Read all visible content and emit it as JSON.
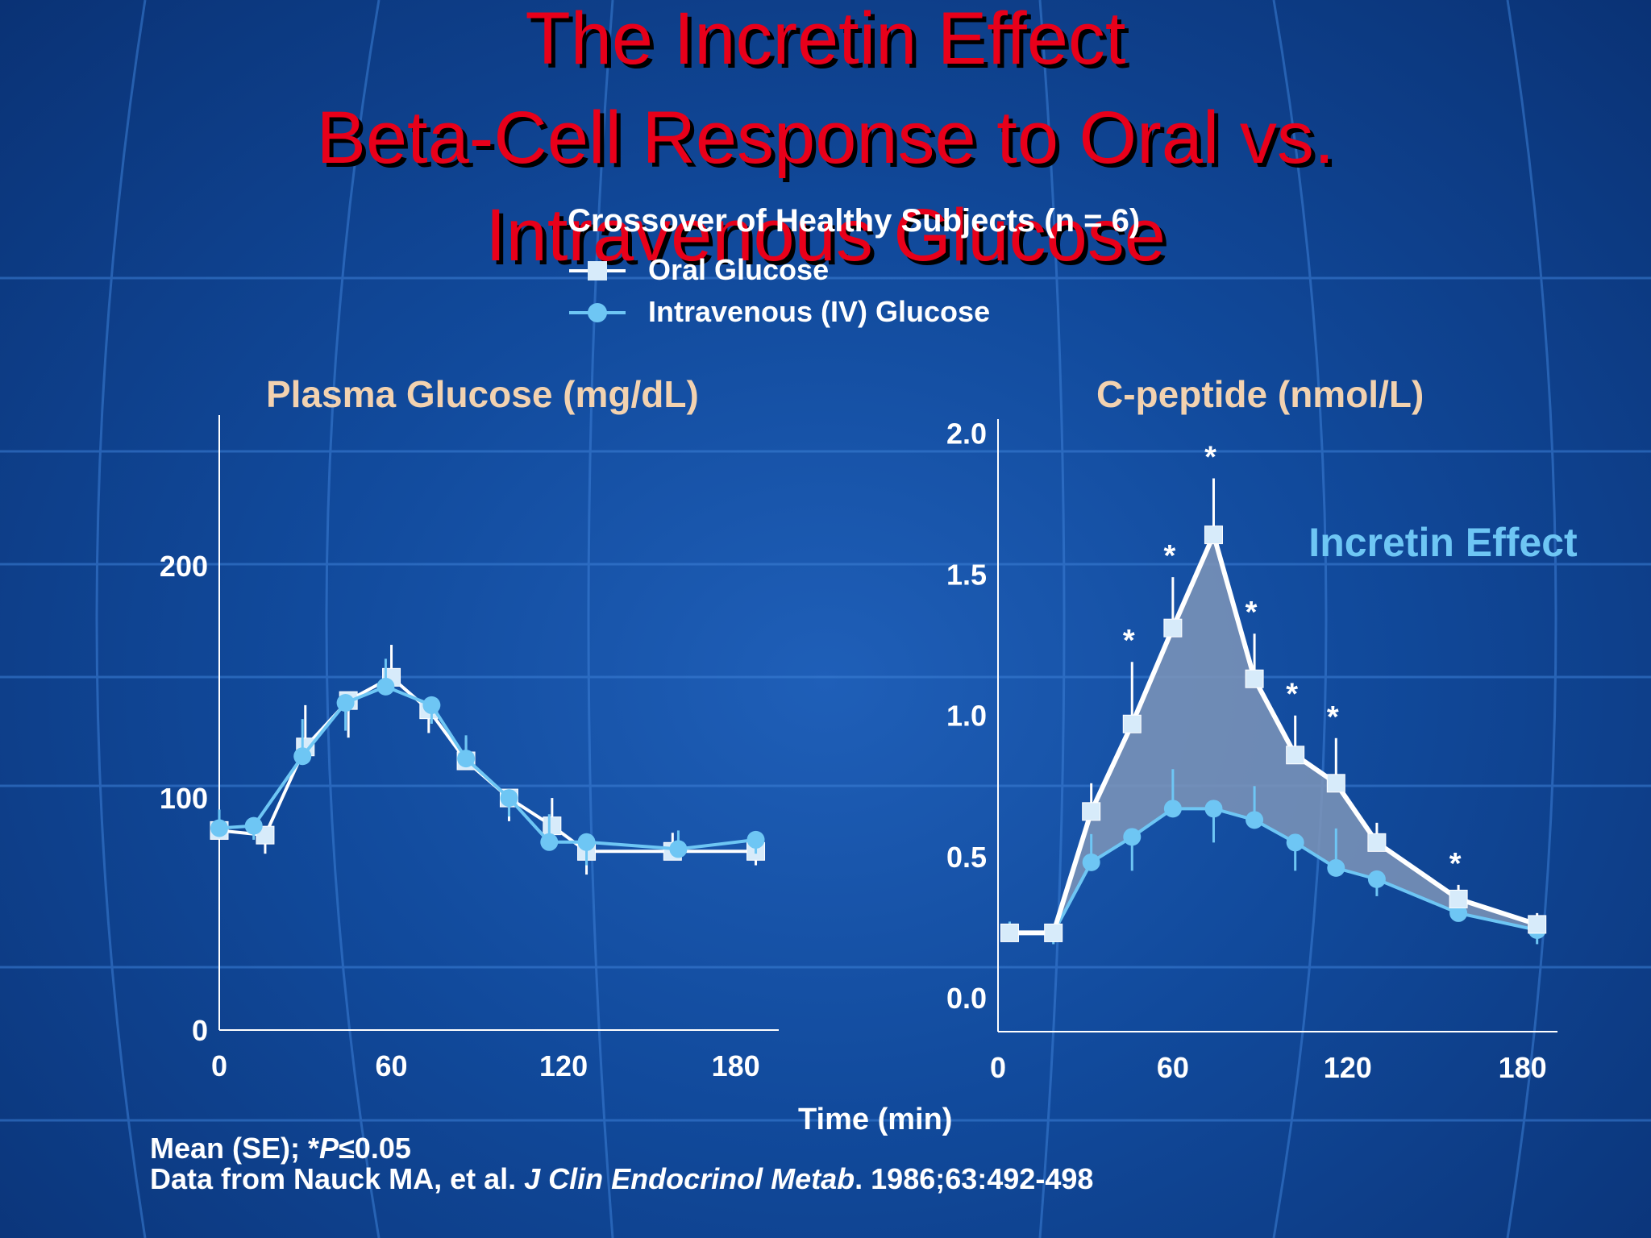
{
  "title": {
    "line1": "The Incretin Effect",
    "line2": "Beta-Cell Response to Oral vs.",
    "line3": "Intravenous Glucose"
  },
  "subtitle": "Crossover of Healthy Subjects (n = 6)",
  "legend": {
    "oral": "Oral Glucose",
    "iv": "Intravenous (IV) Glucose"
  },
  "colors": {
    "title": "#e8001a",
    "oral": "#ffffff",
    "oral_marker": "#d7ebfa",
    "iv": "#6ec6f4",
    "panel_title": "#f2d2b0",
    "incretin_label": "#6ec6f4",
    "area_fill": "#7e95b8"
  },
  "footnote": {
    "line1_prefix": "Mean (SE); *",
    "line1_italic": "P",
    "line1_suffix": "≤0.05",
    "line2_prefix": "Data from Nauck MA, et al. ",
    "line2_italic": "J Clin Endocrinol Metab",
    "line2_suffix": ". 1986;63:492-498"
  },
  "shared_xlabel": "Time (min)",
  "chart_data": [
    {
      "type": "line",
      "title": "Plasma Glucose (mg/dL)",
      "xlabel": "Time (min)",
      "ylabel": "",
      "xlim": [
        0,
        195
      ],
      "ylim": [
        0,
        265
      ],
      "x_ticks": [
        0,
        60,
        120,
        180
      ],
      "y_ticks": [
        0,
        100,
        200
      ],
      "grid": false,
      "series": [
        {
          "name": "Oral Glucose",
          "x": [
            0,
            16,
            30,
            45,
            60,
            73,
            86,
            101,
            116,
            128,
            158,
            187
          ],
          "y": [
            86,
            84,
            122,
            142,
            152,
            138,
            116,
            100,
            88,
            77,
            77,
            77
          ],
          "err": [
            8,
            8,
            18,
            16,
            14,
            10,
            10,
            10,
            12,
            10,
            8,
            6
          ]
        },
        {
          "name": "Intravenous (IV) Glucose",
          "x": [
            0,
            12,
            29,
            44,
            58,
            74,
            86,
            101,
            115,
            128,
            160,
            187
          ],
          "y": [
            87,
            88,
            118,
            141,
            148,
            140,
            117,
            100,
            81,
            81,
            78,
            82
          ],
          "err": [
            8,
            6,
            16,
            12,
            12,
            8,
            10,
            8,
            12,
            10,
            8,
            6
          ]
        }
      ]
    },
    {
      "type": "line",
      "title": "C-peptide (nmol/L)",
      "xlabel": "Time (min)",
      "ylabel": "",
      "xlim": [
        0,
        192
      ],
      "ylim": [
        -0.12,
        2.05
      ],
      "x_ticks": [
        0,
        60,
        120,
        180
      ],
      "y_ticks": [
        0.0,
        0.5,
        1.0,
        1.5,
        2.0
      ],
      "y_tick_labels": [
        "0.0",
        "0.5",
        "1.0",
        "1.5",
        "2.0"
      ],
      "grid": false,
      "annotation": "Incretin Effect",
      "series": [
        {
          "name": "Oral Glucose",
          "x": [
            4,
            19,
            32,
            46,
            60,
            74,
            88,
            102,
            116,
            130,
            158,
            185
          ],
          "y": [
            0.23,
            0.23,
            0.66,
            0.97,
            1.31,
            1.64,
            1.13,
            0.86,
            0.76,
            0.55,
            0.35,
            0.26
          ],
          "err": [
            0.03,
            0.03,
            0.1,
            0.22,
            0.18,
            0.2,
            0.16,
            0.14,
            0.16,
            0.07,
            0.05,
            0.04
          ],
          "significant": [
            false,
            false,
            false,
            true,
            true,
            true,
            true,
            true,
            true,
            false,
            true,
            false
          ]
        },
        {
          "name": "Intravenous (IV) Glucose",
          "x": [
            4,
            19,
            32,
            46,
            60,
            74,
            88,
            102,
            116,
            130,
            158,
            185
          ],
          "y": [
            0.23,
            0.23,
            0.48,
            0.57,
            0.67,
            0.67,
            0.63,
            0.55,
            0.46,
            0.42,
            0.3,
            0.24
          ],
          "err": [
            0.04,
            0.04,
            0.1,
            0.12,
            0.14,
            0.12,
            0.12,
            0.1,
            0.14,
            0.06,
            0.06,
            0.05
          ]
        }
      ]
    }
  ]
}
